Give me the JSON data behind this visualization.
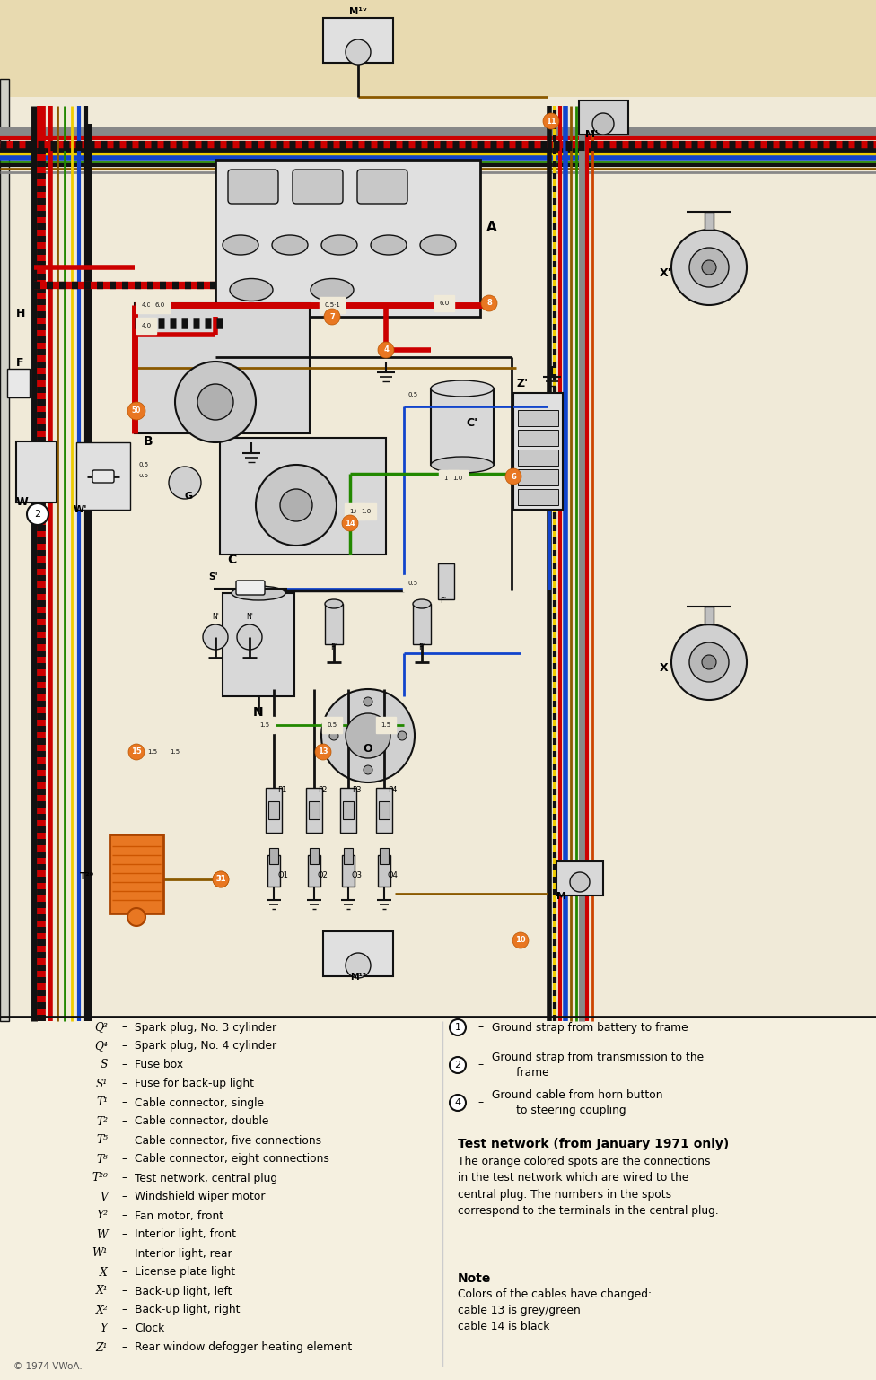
{
  "figsize": [
    9.76,
    15.38
  ],
  "dpi": 100,
  "page_bg": "#f0ead8",
  "top_bg": "#e8dfc0",
  "legend_bg": "#f5f0e0",
  "orange": "#e87722",
  "red": "#cc0000",
  "blue": "#1144cc",
  "green": "#228800",
  "yellow": "#eecc00",
  "black": "#111111",
  "brown": "#8B5A00",
  "gray": "#888888",
  "white": "#ffffff",
  "dkgray": "#444444",
  "ltgray": "#cccccc",
  "legend_items_left": [
    [
      "Q³",
      "Spark plug, No. 3 cylinder"
    ],
    [
      "Q⁴",
      "Spark plug, No. 4 cylinder"
    ],
    [
      "S",
      "Fuse box"
    ],
    [
      "S¹",
      "Fuse for back-up light"
    ],
    [
      "T¹",
      "Cable connector, single"
    ],
    [
      "T²",
      "Cable connector, double"
    ],
    [
      "T⁵",
      "Cable connector, five connections"
    ],
    [
      "T⁶",
      "Cable connector, eight connections"
    ],
    [
      "T²⁰",
      "Test network, central plug"
    ],
    [
      "V",
      "Windshield wiper motor"
    ],
    [
      "Y²",
      "Fan motor, front"
    ],
    [
      "W",
      "Interior light, front"
    ],
    [
      "W¹",
      "Interior light, rear"
    ],
    [
      "X",
      "License plate light"
    ],
    [
      "X¹",
      "Back-up light, left"
    ],
    [
      "X²",
      "Back-up light, right"
    ],
    [
      "Y",
      "Clock"
    ],
    [
      "Z¹",
      "Rear window defogger heating element"
    ]
  ],
  "test_network_title": "Test network (from January 1971 only)",
  "test_network_text": "The orange colored spots are the connections\nin the test network which are wired to the\ncentral plug. The numbers in the spots\ncorrespond to the terminals in the central plug.",
  "note_title": "Note",
  "note_text": "Colors of the cables have changed:\ncable 13 is grey/green\ncable 14 is black",
  "copyright": "© 1974 VWoA."
}
